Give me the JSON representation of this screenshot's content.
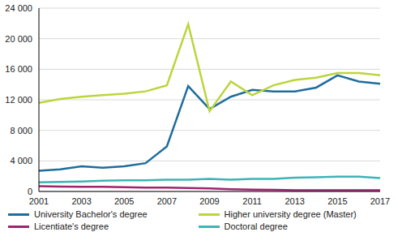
{
  "chart_data": {
    "type": "line",
    "x": [
      2001,
      2002,
      2003,
      2004,
      2005,
      2006,
      2007,
      2008,
      2009,
      2010,
      2011,
      2012,
      2013,
      2014,
      2015,
      2016,
      2017
    ],
    "series": [
      {
        "name": "University Bachelor's degree",
        "color": "#1f6d9c",
        "values": [
          2700,
          2900,
          3300,
          3100,
          3300,
          3700,
          5900,
          13800,
          10800,
          12400,
          13300,
          13100,
          13100,
          13600,
          15200,
          14400,
          14100
        ]
      },
      {
        "name": "Higher university degree (Master)",
        "color": "#bcd53c",
        "values": [
          11600,
          12100,
          12400,
          12600,
          12800,
          13100,
          13900,
          21900,
          10500,
          14400,
          12600,
          13900,
          14600,
          14900,
          15500,
          15500,
          15200
        ]
      },
      {
        "name": "Licentiate's degree",
        "color": "#a0236e",
        "values": [
          700,
          650,
          600,
          600,
          550,
          500,
          500,
          450,
          400,
          300,
          250,
          200,
          150,
          150,
          150,
          150,
          150
        ]
      },
      {
        "name": "Doctoral degree",
        "color": "#3bb5b5",
        "values": [
          1200,
          1250,
          1300,
          1400,
          1450,
          1450,
          1550,
          1550,
          1650,
          1550,
          1650,
          1650,
          1800,
          1850,
          1950,
          1950,
          1750
        ]
      }
    ],
    "xlim": [
      2001,
      2017
    ],
    "xticks": [
      2001,
      2003,
      2005,
      2007,
      2009,
      2011,
      2013,
      2015,
      2017
    ],
    "ylim": [
      0,
      24000
    ],
    "yticks": [
      0,
      {
        "value": 4000,
        "label": "4 000"
      },
      {
        "value": 8000,
        "label": "8 000"
      },
      {
        "value": 12000,
        "label": "12 000"
      },
      {
        "value": 16000,
        "label": "16 000"
      },
      {
        "value": 20000,
        "label": "20 000"
      },
      {
        "value": 24000,
        "label": "24 000"
      }
    ],
    "grid": true,
    "legend": "bottom"
  }
}
